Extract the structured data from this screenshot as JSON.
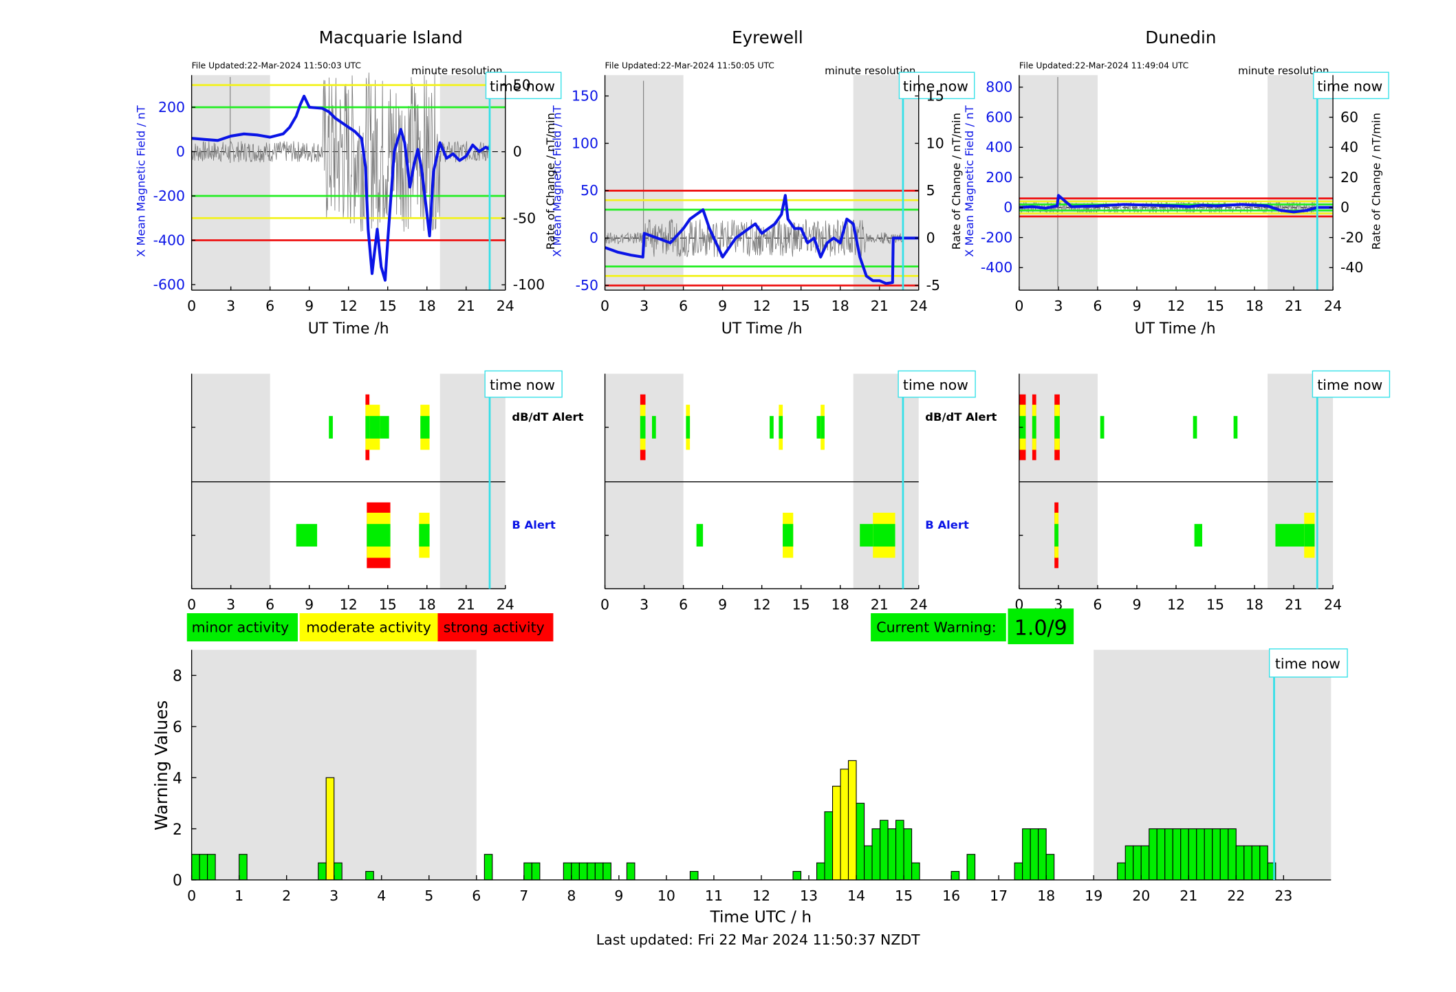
{
  "colors": {
    "field": "#0a14e6",
    "noise": "#7a7a7a",
    "shade": "#e3e3e3",
    "green": "#00ee00",
    "yellow": "#ffff00",
    "red": "#ff0000",
    "cyan": "#33e0e8",
    "hline_green": "#22ee22",
    "hline_yellow": "#f2f21a",
    "hline_red": "#ee1111"
  },
  "labels": {
    "time_now": "time now",
    "minute_resolution": "minute resolution",
    "ut_time": "UT Time /h",
    "dbdt_alert": "dB/dT Alert",
    "b_alert": "B Alert",
    "x_mean": "X Mean Magnetic Field / nT",
    "rate_change": "Rate of Change / nT/min"
  },
  "stations": [
    {
      "name": "Macquarie Island",
      "file_updated": "File Updated:22-Mar-2024 11:50:03 UTC",
      "y_ticks": [
        "200",
        "0",
        "-200",
        "-400",
        "-600"
      ],
      "y2_ticks": [
        "50",
        "0",
        "-50",
        "-100"
      ],
      "x_ticks": [
        "0",
        "3",
        "6",
        "9",
        "12",
        "15",
        "18",
        "21",
        "24"
      ],
      "chart_data": {
        "type": "line",
        "xlabel": "UT Time /h",
        "ylabel": "X Mean Magnetic Field / nT",
        "y2label": "Rate of Change / nT/min",
        "xlim": [
          0,
          24
        ],
        "ylim": [
          -625,
          345
        ],
        "y2lim": [
          -104,
          57.5
        ],
        "shaded_hours": [
          [
            0,
            6
          ],
          [
            19,
            24
          ]
        ],
        "time_now": 22.8,
        "hlines": [
          {
            "y": 300,
            "color": "yellow"
          },
          {
            "y": 200,
            "color": "green"
          },
          {
            "y": -200,
            "color": "green"
          },
          {
            "y": -300,
            "color": "yellow"
          },
          {
            "y": -400,
            "color": "red"
          }
        ],
        "x": [
          0,
          1,
          2,
          3,
          4,
          5,
          6,
          7,
          7.5,
          8,
          8.3,
          8.6,
          9,
          10,
          10.5,
          11,
          12,
          12.5,
          13,
          13.3,
          13.5,
          13.8,
          14,
          14.2,
          14.5,
          14.8,
          15,
          15.5,
          16,
          16.3,
          16.7,
          17,
          17.3,
          17.6,
          17.9,
          18.2,
          18.5,
          19,
          19.5,
          20,
          20.5,
          21,
          21.5,
          22,
          22.5,
          22.8
        ],
        "values": [
          60,
          55,
          50,
          70,
          80,
          75,
          65,
          80,
          110,
          160,
          210,
          250,
          200,
          195,
          180,
          150,
          110,
          90,
          60,
          -70,
          -350,
          -550,
          -450,
          -350,
          -520,
          -580,
          -400,
          0,
          100,
          40,
          -160,
          -60,
          10,
          -80,
          -230,
          -380,
          -90,
          40,
          -30,
          -10,
          -40,
          -20,
          30,
          0,
          20,
          10
        ]
      },
      "alerts": {
        "dbdt": [
          {
            "start": 10.5,
            "end": 10.8,
            "levels": [
              "green"
            ]
          },
          {
            "start": 13.3,
            "end": 13.6,
            "levels": [
              "green",
              "yellow",
              "red"
            ]
          },
          {
            "start": 13.6,
            "end": 14.4,
            "levels": [
              "green",
              "yellow"
            ]
          },
          {
            "start": 14.4,
            "end": 15.1,
            "levels": [
              "green"
            ]
          },
          {
            "start": 17.5,
            "end": 18.2,
            "levels": [
              "green",
              "yellow"
            ]
          }
        ],
        "b": [
          {
            "start": 8.0,
            "end": 9.6,
            "levels": [
              "green"
            ]
          },
          {
            "start": 13.4,
            "end": 15.2,
            "levels": [
              "green",
              "yellow",
              "red"
            ]
          },
          {
            "start": 17.4,
            "end": 18.2,
            "levels": [
              "green",
              "yellow"
            ]
          }
        ]
      }
    },
    {
      "name": "Eyrewell",
      "file_updated": "File Updated:22-Mar-2024 11:50:05 UTC",
      "y_ticks": [
        "150",
        "100",
        "50",
        "0",
        "-50"
      ],
      "y2_ticks": [
        "15",
        "10",
        "5",
        "0",
        "-5"
      ],
      "x_ticks": [
        "0",
        "3",
        "6",
        "9",
        "12",
        "15",
        "18",
        "21",
        "24"
      ],
      "chart_data": {
        "type": "line",
        "xlabel": "UT Time /h",
        "ylabel": "X Mean Magnetic Field / nT",
        "y2label": "Rate of Change / nT/min",
        "xlim": [
          0,
          24
        ],
        "ylim": [
          -55,
          172
        ],
        "y2lim": [
          -5.5,
          17.2
        ],
        "shaded_hours": [
          [
            0,
            6
          ],
          [
            19,
            24
          ]
        ],
        "time_now": 22.8,
        "hlines": [
          {
            "y": 50,
            "color": "red"
          },
          {
            "y": 40,
            "color": "yellow"
          },
          {
            "y": 30,
            "color": "green"
          },
          {
            "y": -30,
            "color": "green"
          },
          {
            "y": -40,
            "color": "yellow"
          },
          {
            "y": -50,
            "color": "red"
          }
        ],
        "x": [
          0,
          1,
          2,
          2.9,
          3,
          4,
          5,
          6,
          6.5,
          7,
          7.5,
          8,
          8.5,
          9,
          10,
          11,
          11.5,
          12,
          12.5,
          13,
          13.5,
          13.8,
          14,
          14.5,
          15,
          15.5,
          16,
          16.5,
          17,
          17.5,
          18,
          18.5,
          19,
          19.5,
          20,
          20.5,
          21,
          21.5,
          22,
          22.05,
          22.8,
          24
        ],
        "values": [
          -10,
          -15,
          -18,
          -20,
          5,
          0,
          -5,
          10,
          20,
          25,
          30,
          10,
          -5,
          -20,
          0,
          10,
          15,
          5,
          10,
          15,
          25,
          45,
          20,
          10,
          10,
          -5,
          0,
          -20,
          -5,
          0,
          -5,
          20,
          15,
          -20,
          -40,
          -45,
          -45,
          -48,
          -47,
          0,
          0,
          0
        ]
      },
      "alerts": {
        "dbdt": [
          {
            "start": 2.7,
            "end": 3.1,
            "levels": [
              "green",
              "yellow",
              "red"
            ]
          },
          {
            "start": 3.6,
            "end": 3.9,
            "levels": [
              "green"
            ]
          },
          {
            "start": 6.2,
            "end": 6.5,
            "levels": [
              "green",
              "yellow"
            ]
          },
          {
            "start": 12.6,
            "end": 12.9,
            "levels": [
              "green"
            ]
          },
          {
            "start": 13.3,
            "end": 13.6,
            "levels": [
              "green",
              "yellow"
            ]
          },
          {
            "start": 16.2,
            "end": 16.5,
            "levels": [
              "green"
            ]
          },
          {
            "start": 16.5,
            "end": 16.8,
            "levels": [
              "green",
              "yellow"
            ]
          }
        ],
        "b": [
          {
            "start": 7.0,
            "end": 7.5,
            "levels": [
              "green"
            ]
          },
          {
            "start": 13.6,
            "end": 14.4,
            "levels": [
              "green",
              "yellow"
            ]
          },
          {
            "start": 19.5,
            "end": 20.5,
            "levels": [
              "green"
            ]
          },
          {
            "start": 20.5,
            "end": 22.2,
            "levels": [
              "green",
              "yellow"
            ]
          }
        ]
      }
    },
    {
      "name": "Dunedin",
      "file_updated": "File Updated:22-Mar-2024 11:49:04 UTC",
      "y_ticks": [
        "800",
        "600",
        "400",
        "200",
        "0",
        "-200",
        "-400"
      ],
      "y2_ticks": [
        "60",
        "40",
        "20",
        "0",
        "-20",
        "-40"
      ],
      "x_ticks": [
        "0",
        "3",
        "6",
        "9",
        "12",
        "15",
        "18",
        "21",
        "24"
      ],
      "chart_data": {
        "type": "line",
        "xlabel": "UT Time /h",
        "ylabel": "X Mean Magnetic Field / nT",
        "y2label": "Rate of Change / nT/min",
        "xlim": [
          0,
          24
        ],
        "ylim": [
          -550,
          880
        ],
        "y2lim": [
          -55,
          88
        ],
        "shaded_hours": [
          [
            0,
            6
          ],
          [
            19,
            24
          ]
        ],
        "time_now": 22.8,
        "hlines": [
          {
            "y": 60,
            "color": "red"
          },
          {
            "y": 40,
            "color": "yellow"
          },
          {
            "y": 20,
            "color": "green"
          },
          {
            "y": -20,
            "color": "green"
          },
          {
            "y": -40,
            "color": "yellow"
          },
          {
            "y": -60,
            "color": "red"
          }
        ],
        "x": [
          0,
          1,
          2,
          2.9,
          3,
          4,
          6,
          8,
          10,
          12,
          13,
          14,
          15,
          16,
          17,
          18,
          19,
          20,
          21,
          22,
          22.8,
          24
        ],
        "values": [
          0,
          5,
          -5,
          10,
          80,
          5,
          10,
          20,
          15,
          10,
          5,
          15,
          10,
          15,
          20,
          15,
          10,
          -20,
          -30,
          -20,
          0,
          0
        ]
      },
      "alerts": {
        "dbdt": [
          {
            "start": 0.0,
            "end": 0.5,
            "levels": [
              "green",
              "yellow",
              "red"
            ]
          },
          {
            "start": 1.0,
            "end": 1.3,
            "levels": [
              "green",
              "yellow",
              "red"
            ]
          },
          {
            "start": 2.7,
            "end": 3.1,
            "levels": [
              "green",
              "yellow",
              "red"
            ]
          },
          {
            "start": 6.2,
            "end": 6.5,
            "levels": [
              "green"
            ]
          },
          {
            "start": 13.3,
            "end": 13.6,
            "levels": [
              "green"
            ]
          },
          {
            "start": 16.4,
            "end": 16.7,
            "levels": [
              "green"
            ]
          }
        ],
        "b": [
          {
            "start": 2.7,
            "end": 3.0,
            "levels": [
              "green",
              "yellow",
              "red"
            ]
          },
          {
            "start": 13.4,
            "end": 14.0,
            "levels": [
              "green"
            ]
          },
          {
            "start": 19.6,
            "end": 21.8,
            "levels": [
              "green"
            ]
          },
          {
            "start": 21.8,
            "end": 22.6,
            "levels": [
              "green",
              "yellow"
            ]
          }
        ]
      }
    }
  ],
  "legend": {
    "minor": "minor activity",
    "moderate": "moderate activity",
    "strong": "strong activity"
  },
  "current_warning": {
    "label": "Current Warning:",
    "value": "1.0/9"
  },
  "chart_data": {
    "type": "bar",
    "xlabel": "Time UTC / h",
    "ylabel": "Warning Values",
    "xlim": [
      0,
      24
    ],
    "ylim": [
      0,
      9
    ],
    "x_ticks": [
      "0",
      "1",
      "2",
      "3",
      "4",
      "5",
      "6",
      "7",
      "8",
      "9",
      "10",
      "11",
      "12",
      "13",
      "14",
      "15",
      "16",
      "17",
      "18",
      "19",
      "20",
      "21",
      "22",
      "23"
    ],
    "y_ticks": [
      "0",
      "2",
      "4",
      "6",
      "8"
    ],
    "shaded_hours": [
      [
        0,
        6
      ],
      [
        19,
        24
      ]
    ],
    "time_now": 22.8,
    "bar_width_h": 0.1667,
    "bars": [
      [
        0.0,
        1,
        "green"
      ],
      [
        0.167,
        1,
        "green"
      ],
      [
        0.333,
        1,
        "green"
      ],
      [
        1.0,
        1,
        "green"
      ],
      [
        2.667,
        0.667,
        "green"
      ],
      [
        2.833,
        4,
        "yellow"
      ],
      [
        3.0,
        0.667,
        "green"
      ],
      [
        3.667,
        0.333,
        "green"
      ],
      [
        6.167,
        1,
        "green"
      ],
      [
        7.0,
        0.667,
        "green"
      ],
      [
        7.167,
        0.667,
        "green"
      ],
      [
        7.833,
        0.667,
        "green"
      ],
      [
        8.0,
        0.667,
        "green"
      ],
      [
        8.167,
        0.667,
        "green"
      ],
      [
        8.333,
        0.667,
        "green"
      ],
      [
        8.5,
        0.667,
        "green"
      ],
      [
        8.667,
        0.667,
        "green"
      ],
      [
        9.167,
        0.667,
        "green"
      ],
      [
        10.5,
        0.333,
        "green"
      ],
      [
        12.667,
        0.333,
        "green"
      ],
      [
        13.167,
        0.667,
        "green"
      ],
      [
        13.333,
        2.667,
        "green"
      ],
      [
        13.5,
        3.667,
        "yellow"
      ],
      [
        13.667,
        4.333,
        "yellow"
      ],
      [
        13.833,
        4.667,
        "yellow"
      ],
      [
        14.0,
        3,
        "green"
      ],
      [
        14.167,
        1.333,
        "green"
      ],
      [
        14.333,
        2,
        "green"
      ],
      [
        14.5,
        2.333,
        "green"
      ],
      [
        14.667,
        2,
        "green"
      ],
      [
        14.833,
        2.333,
        "green"
      ],
      [
        15.0,
        2,
        "green"
      ],
      [
        15.167,
        0.667,
        "green"
      ],
      [
        16.0,
        0.333,
        "green"
      ],
      [
        16.333,
        1,
        "green"
      ],
      [
        17.333,
        0.667,
        "green"
      ],
      [
        17.5,
        2,
        "green"
      ],
      [
        17.667,
        2,
        "green"
      ],
      [
        17.833,
        2,
        "green"
      ],
      [
        18.0,
        1,
        "green"
      ],
      [
        19.5,
        0.667,
        "green"
      ],
      [
        19.667,
        1.333,
        "green"
      ],
      [
        19.833,
        1.333,
        "green"
      ],
      [
        20.0,
        1.333,
        "green"
      ],
      [
        20.167,
        2,
        "green"
      ],
      [
        20.333,
        2,
        "green"
      ],
      [
        20.5,
        2,
        "green"
      ],
      [
        20.667,
        2,
        "green"
      ],
      [
        20.833,
        2,
        "green"
      ],
      [
        21.0,
        2,
        "green"
      ],
      [
        21.167,
        2,
        "green"
      ],
      [
        21.333,
        2,
        "green"
      ],
      [
        21.5,
        2,
        "green"
      ],
      [
        21.667,
        2,
        "green"
      ],
      [
        21.833,
        2,
        "green"
      ],
      [
        22.0,
        1.333,
        "green"
      ],
      [
        22.167,
        1.333,
        "green"
      ],
      [
        22.333,
        1.333,
        "green"
      ],
      [
        22.5,
        1.333,
        "green"
      ],
      [
        22.667,
        0.667,
        "green"
      ]
    ]
  },
  "footer": {
    "last_updated": "Last updated: Fri 22 Mar 2024 11:50:37 NZDT"
  }
}
